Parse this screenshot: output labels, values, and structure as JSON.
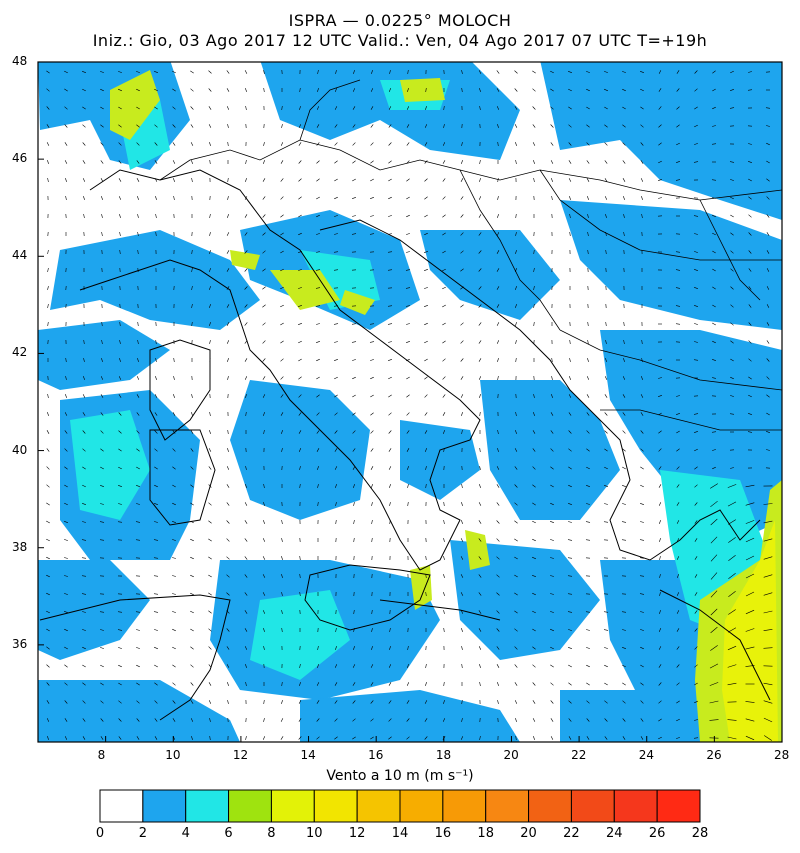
{
  "header": {
    "title": "ISPRA — 0.0225° MOLOCH",
    "subtitle": "Iniz.: Gio, 03 Ago 2017   12 UTC   Valid.: Ven, 04 Ago 2017   07 UTC   T=+19h"
  },
  "map": {
    "lon_range": [
      6,
      28
    ],
    "lat_range": [
      34,
      48
    ],
    "lon_ticks": [
      "8",
      "10",
      "12",
      "14",
      "16",
      "18",
      "20",
      "22",
      "24",
      "26",
      "28"
    ],
    "lat_ticks": [
      "48",
      "46",
      "44",
      "42",
      "40",
      "38",
      "36"
    ],
    "variable_label": "Vento a 10 m (m s⁻¹)"
  },
  "colorbar": {
    "labels": [
      "0",
      "2",
      "4",
      "6",
      "8",
      "10",
      "12",
      "14",
      "16",
      "18",
      "20",
      "22",
      "24",
      "26",
      "28"
    ],
    "colors": [
      "#ffffff",
      "#1ea5ee",
      "#21e6e6",
      "#9fe30f",
      "#e3f207",
      "#f2e500",
      "#f5c400",
      "#f7ad00",
      "#f79a06",
      "#f78712",
      "#f26214",
      "#f24a18",
      "#f5371c",
      "#ff2a14"
    ]
  }
}
